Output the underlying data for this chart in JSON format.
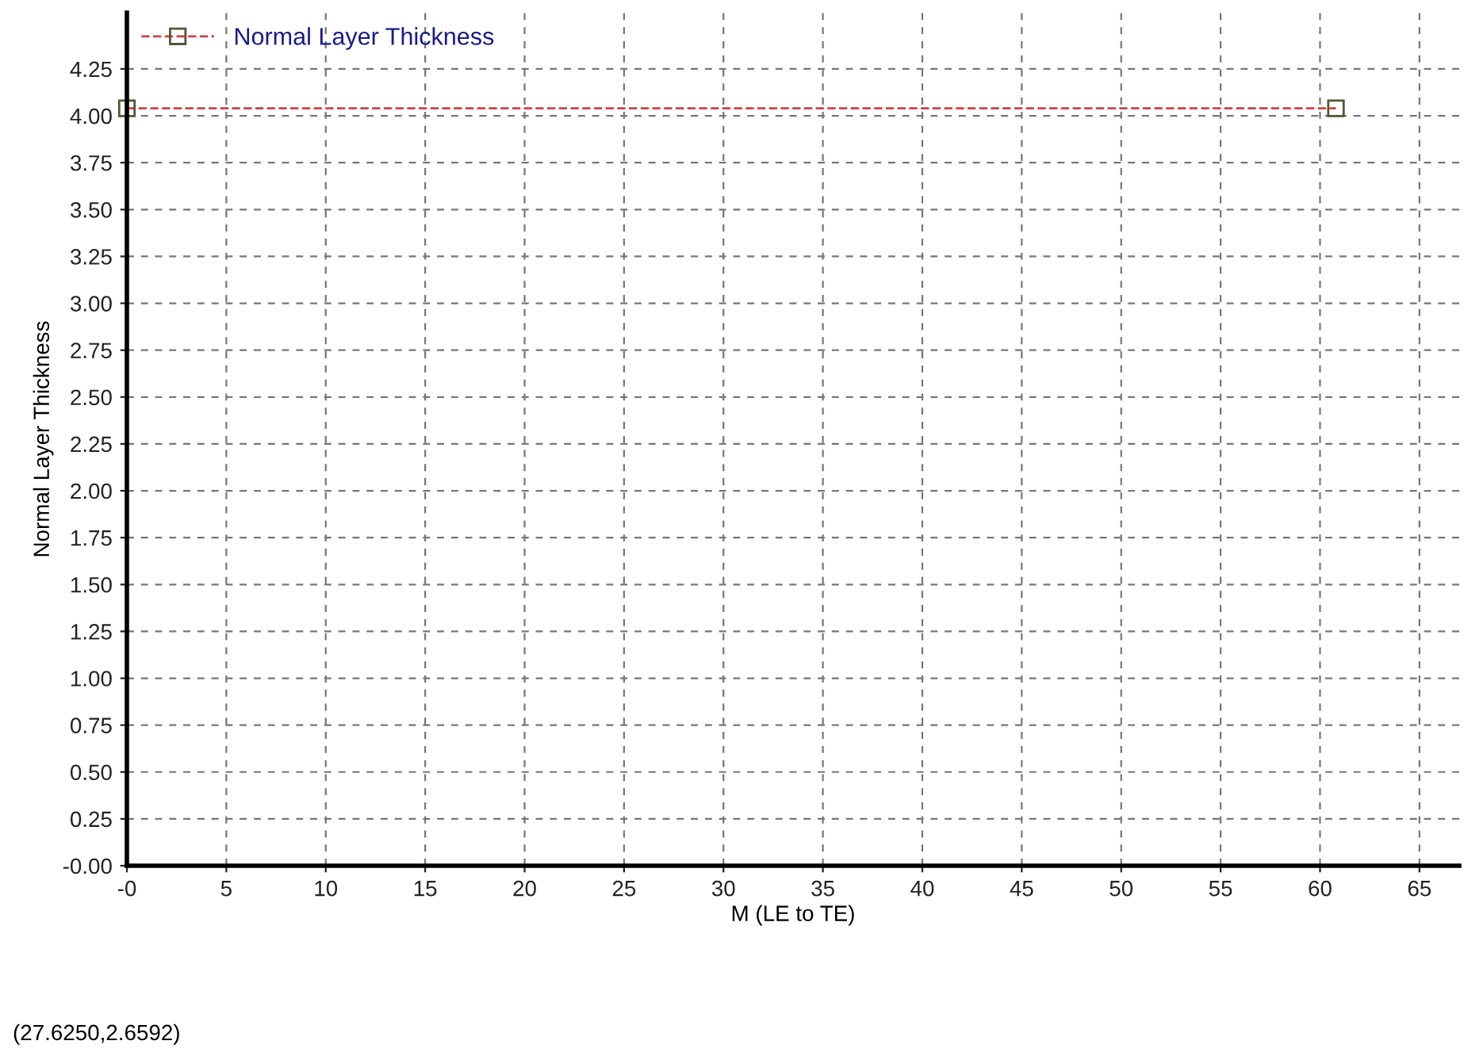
{
  "chart_data": {
    "type": "line",
    "xlabel": "M (LE to TE)",
    "ylabel": "Normal Layer Thickness",
    "x": [
      0,
      60.8
    ],
    "series": [
      {
        "name": "Normal Layer Thickness",
        "color": "#d04040",
        "values": [
          4.04,
          4.04
        ]
      }
    ],
    "marker": "square",
    "line_style": "dashed",
    "grid": true,
    "legend": "top left",
    "xlim": [
      0,
      67
    ],
    "xticks": [
      {
        "value": 0,
        "label": "-0"
      },
      5,
      10,
      15,
      20,
      25,
      30,
      35,
      40,
      45,
      50,
      55,
      60,
      65
    ],
    "ylim": [
      0,
      4.55
    ],
    "yticks": [
      {
        "value": 0,
        "label": "-0.00"
      },
      {
        "value": 0.25,
        "label": "0.25"
      },
      {
        "value": 0.5,
        "label": "0.50"
      },
      {
        "value": 0.75,
        "label": "0.75"
      },
      {
        "value": 1,
        "label": "1.00"
      },
      {
        "value": 1.25,
        "label": "1.25"
      },
      {
        "value": 1.5,
        "label": "1.50"
      },
      {
        "value": 1.75,
        "label": "1.75"
      },
      {
        "value": 2,
        "label": "2.00"
      },
      {
        "value": 2.25,
        "label": "2.25"
      },
      {
        "value": 2.5,
        "label": "2.50"
      },
      {
        "value": 2.75,
        "label": "2.75"
      },
      {
        "value": 3,
        "label": "3.00"
      },
      {
        "value": 3.25,
        "label": "3.25"
      },
      {
        "value": 3.5,
        "label": "3.50"
      },
      {
        "value": 3.75,
        "label": "3.75"
      },
      {
        "value": 4,
        "label": "4.00"
      },
      {
        "value": 4.25,
        "label": "4.25"
      }
    ],
    "annotations": [
      "(27.6250,2.6592)"
    ]
  }
}
